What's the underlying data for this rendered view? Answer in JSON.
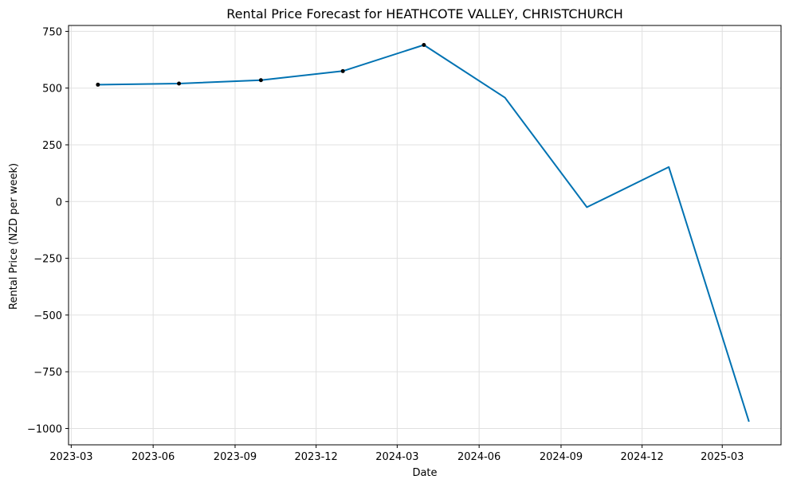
{
  "chart_data": {
    "type": "line",
    "title": "Rental Price Forecast for HEATHCOTE VALLEY, CHRISTCHURCH",
    "xlabel": "Date",
    "ylabel": "Rental Price (NZD per week)",
    "x_type": "date",
    "xlim": [
      "2023-02-26",
      "2025-05-06"
    ],
    "ylim": [
      -1072,
      776
    ],
    "xticks": [
      "2023-03-01",
      "2023-06-01",
      "2023-09-01",
      "2023-12-01",
      "2024-03-01",
      "2024-06-01",
      "2024-09-01",
      "2024-12-01",
      "2025-03-01"
    ],
    "xtick_labels": [
      "2023-03",
      "2023-06",
      "2023-09",
      "2023-12",
      "2024-03",
      "2024-06",
      "2024-09",
      "2024-12",
      "2025-03"
    ],
    "yticks": [
      750,
      500,
      250,
      0,
      -250,
      -500,
      -750,
      -1000
    ],
    "ytick_labels": [
      "750",
      "500",
      "250",
      "0",
      "−250",
      "−500",
      "−750",
      "−1000"
    ],
    "grid": true,
    "line_color": "#0072B2",
    "marker_color": "#000000",
    "series": [
      {
        "values": [
          {
            "x": "2023-03-31",
            "y": 515
          },
          {
            "x": "2023-06-30",
            "y": 520
          },
          {
            "x": "2023-09-30",
            "y": 535
          },
          {
            "x": "2023-12-31",
            "y": 575
          },
          {
            "x": "2024-03-31",
            "y": 690
          },
          {
            "x": "2024-06-30",
            "y": 458
          },
          {
            "x": "2024-09-30",
            "y": -25
          },
          {
            "x": "2024-12-31",
            "y": 152
          },
          {
            "x": "2025-03-31",
            "y": -970
          }
        ]
      }
    ],
    "observed_points": [
      {
        "x": "2023-03-31",
        "y": 515
      },
      {
        "x": "2023-06-30",
        "y": 520
      },
      {
        "x": "2023-09-30",
        "y": 535
      },
      {
        "x": "2023-12-31",
        "y": 575
      },
      {
        "x": "2024-03-31",
        "y": 690
      }
    ]
  }
}
